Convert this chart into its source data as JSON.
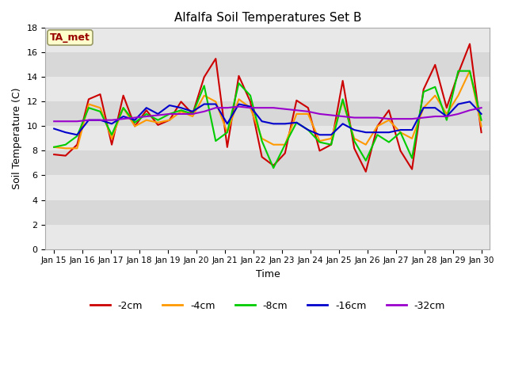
{
  "title": "Alfalfa Soil Temperatures Set B",
  "xlabel": "Time",
  "ylabel": "Soil Temperature (C)",
  "ylim": [
    0,
    18
  ],
  "yticks": [
    0,
    2,
    4,
    6,
    8,
    10,
    12,
    14,
    16,
    18
  ],
  "bg_color": "#ffffff",
  "plot_bg_color": "#d8d8d8",
  "band_light_color": "#e8e8e8",
  "annotation_text": "TA_met",
  "annotation_bg": "#ffffcc",
  "annotation_border": "#999966",
  "annotation_text_color": "#990000",
  "x_labels": [
    "Jan 15",
    "Jan 16",
    "Jan 17",
    "Jan 18",
    "Jan 19",
    "Jan 20",
    "Jan 21",
    "Jan 22",
    "Jan 23",
    "Jan 24",
    "Jan 25",
    "Jan 26",
    "Jan 27",
    "Jan 28",
    "Jan 29",
    "Jan 30"
  ],
  "series_order": [
    "-2cm",
    "-4cm",
    "-8cm",
    "-16cm",
    "-32cm"
  ],
  "series": {
    "-2cm": {
      "color": "#cc0000",
      "values": [
        7.7,
        7.6,
        8.5,
        12.2,
        12.6,
        8.5,
        12.5,
        10.0,
        11.3,
        10.1,
        10.5,
        12.0,
        11.0,
        14.0,
        15.5,
        8.3,
        14.1,
        12.0,
        7.5,
        6.8,
        7.8,
        12.1,
        11.5,
        8.0,
        8.5,
        13.7,
        8.2,
        6.3,
        10.0,
        11.3,
        8.0,
        6.5,
        13.0,
        15.0,
        11.5,
        14.3,
        16.7,
        9.5
      ]
    },
    "-4cm": {
      "color": "#ff9900",
      "values": [
        8.3,
        8.2,
        8.2,
        11.8,
        11.5,
        9.0,
        11.5,
        10.0,
        10.5,
        10.3,
        10.5,
        11.2,
        10.8,
        12.5,
        12.0,
        9.5,
        12.2,
        11.5,
        9.0,
        8.5,
        8.5,
        11.0,
        11.0,
        8.8,
        9.0,
        12.0,
        9.0,
        8.5,
        10.0,
        10.5,
        9.5,
        9.0,
        11.5,
        12.5,
        11.0,
        12.5,
        14.5,
        10.0
      ]
    },
    "-8cm": {
      "color": "#00cc00",
      "values": [
        8.3,
        8.5,
        9.2,
        11.5,
        11.2,
        9.3,
        11.5,
        10.3,
        11.0,
        10.5,
        11.0,
        11.3,
        11.0,
        13.3,
        8.8,
        9.5,
        13.5,
        12.5,
        8.8,
        6.6,
        8.5,
        10.3,
        9.7,
        8.7,
        8.5,
        12.2,
        8.8,
        7.2,
        9.3,
        8.7,
        9.5,
        7.4,
        12.8,
        13.2,
        10.5,
        14.5,
        14.5,
        10.5
      ]
    },
    "-16cm": {
      "color": "#0000cc",
      "values": [
        9.8,
        9.5,
        9.3,
        10.5,
        10.5,
        10.2,
        10.8,
        10.5,
        11.5,
        11.0,
        11.7,
        11.5,
        11.2,
        11.8,
        11.8,
        10.2,
        11.8,
        11.6,
        10.4,
        10.2,
        10.2,
        10.3,
        9.7,
        9.3,
        9.3,
        10.2,
        9.7,
        9.5,
        9.5,
        9.5,
        9.7,
        9.7,
        11.5,
        11.5,
        10.8,
        11.8,
        12.0,
        11.0
      ]
    },
    "-32cm": {
      "color": "#9900cc",
      "values": [
        10.4,
        10.4,
        10.4,
        10.5,
        10.5,
        10.5,
        10.6,
        10.7,
        10.8,
        10.9,
        11.0,
        11.0,
        11.0,
        11.2,
        11.5,
        11.5,
        11.6,
        11.5,
        11.5,
        11.5,
        11.4,
        11.3,
        11.2,
        11.0,
        10.9,
        10.8,
        10.7,
        10.7,
        10.7,
        10.6,
        10.6,
        10.6,
        10.7,
        10.8,
        10.8,
        11.0,
        11.3,
        11.5
      ]
    }
  }
}
